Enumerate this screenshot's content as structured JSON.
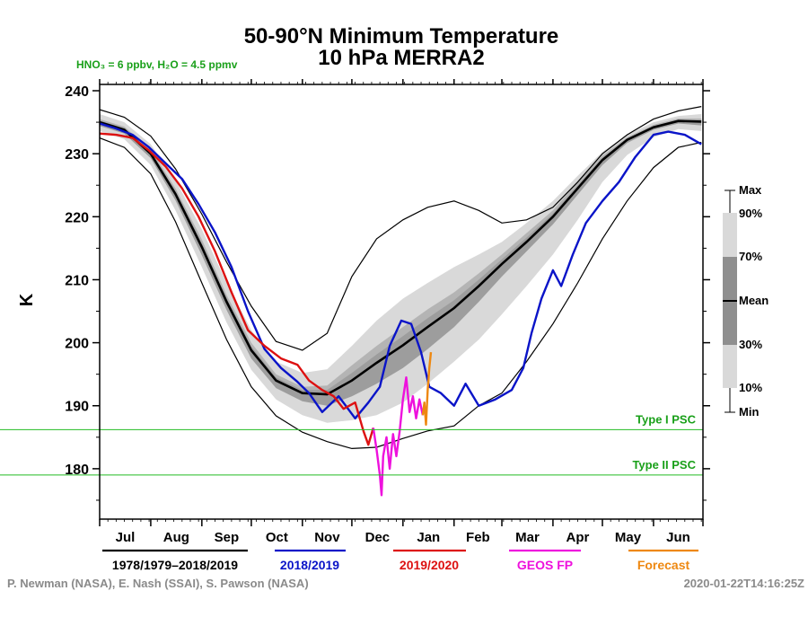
{
  "title_line1": "50-90°N Minimum Temperature",
  "title_line2": "10 hPa   MERRA2",
  "conditions": "HNO₃ = 6 ppbv, H₂O = 4.5 ppmv",
  "ylabel": "K",
  "colors": {
    "climatology": "#000000",
    "y2018": "#0a14c8",
    "y2019": "#dd1111",
    "geos": "#ee11dd",
    "forecast": "#ee8811",
    "psc": "#22bb22",
    "band_outer": "#d9d9d9",
    "band_mid": "#b4b4b4",
    "band_inner": "#8a8a8a"
  },
  "band_key": {
    "labels": [
      "Max",
      "90%",
      "70%",
      "Mean",
      "30%",
      "10%",
      "Min"
    ]
  },
  "footer": {
    "credits": "P. Newman (NASA), E. Nash (SSAI), S. Pawson (NASA)",
    "timestamp": "2020-01-22T14:16:25Z"
  },
  "chart_data": {
    "type": "line",
    "ylim": [
      172,
      241
    ],
    "yticks": [
      180,
      190,
      200,
      210,
      220,
      230,
      240
    ],
    "xlim": [
      0,
      366
    ],
    "months": [
      "Jul",
      "Aug",
      "Sep",
      "Oct",
      "Nov",
      "Dec",
      "Jan",
      "Feb",
      "Mar",
      "Apr",
      "May",
      "Jun"
    ],
    "month_edges": [
      0,
      31,
      62,
      92,
      123,
      153,
      184,
      215,
      244,
      275,
      305,
      336,
      366
    ],
    "thresholds": [
      {
        "label": "Type I PSC",
        "value": 186.2
      },
      {
        "label": "Type II PSC",
        "value": 179.0
      }
    ],
    "x": [
      0,
      15,
      31,
      46,
      62,
      77,
      92,
      107,
      123,
      138,
      153,
      168,
      184,
      199,
      215,
      230,
      244,
      259,
      275,
      290,
      305,
      320,
      336,
      351,
      365
    ],
    "climatology": {
      "name": "1978/1979–2018/2019",
      "max": [
        237.0,
        235.8,
        232.8,
        227.6,
        220.4,
        212.8,
        205.8,
        200.2,
        198.8,
        201.5,
        210.5,
        216.5,
        219.5,
        221.5,
        222.5,
        221.0,
        219.0,
        219.5,
        221.5,
        225.5,
        230.0,
        233.0,
        235.5,
        236.8,
        237.5
      ],
      "p90": [
        236.3,
        235.0,
        231.5,
        225.8,
        218.0,
        209.5,
        202.0,
        197.0,
        195.2,
        195.8,
        199.5,
        203.5,
        207.0,
        209.5,
        212.0,
        214.0,
        216.0,
        219.0,
        222.5,
        226.5,
        230.3,
        233.0,
        235.0,
        236.0,
        236.3
      ],
      "p70": [
        235.5,
        234.3,
        230.7,
        224.5,
        216.4,
        207.6,
        200.0,
        195.0,
        193.0,
        193.2,
        196.4,
        199.5,
        202.5,
        205.3,
        208.0,
        211.0,
        214.0,
        217.4,
        221.0,
        225.5,
        229.7,
        232.6,
        234.6,
        235.6,
        235.6
      ],
      "mean": [
        235.0,
        233.8,
        230.0,
        223.6,
        215.2,
        206.5,
        198.8,
        194.0,
        192.0,
        191.8,
        194.0,
        196.8,
        199.6,
        202.5,
        205.5,
        209.0,
        212.5,
        216.0,
        220.0,
        224.5,
        229.0,
        232.2,
        234.2,
        235.2,
        235.1
      ],
      "p30": [
        234.4,
        233.2,
        229.3,
        222.6,
        213.9,
        205.2,
        197.5,
        192.8,
        190.7,
        190.0,
        191.5,
        193.5,
        196.0,
        199.0,
        202.5,
        206.5,
        210.5,
        214.5,
        218.8,
        223.5,
        228.2,
        231.7,
        233.8,
        234.8,
        234.5
      ],
      "p10": [
        233.6,
        232.3,
        228.2,
        221.0,
        212.0,
        203.2,
        195.7,
        191.0,
        188.5,
        187.3,
        187.7,
        188.5,
        190.5,
        193.5,
        197.0,
        200.5,
        204.5,
        209.0,
        214.0,
        219.5,
        225.5,
        229.8,
        232.6,
        233.9,
        233.6
      ],
      "min": [
        232.5,
        231.0,
        226.8,
        219.2,
        209.5,
        200.5,
        193.0,
        188.4,
        185.8,
        184.3,
        183.2,
        183.4,
        184.8,
        186.0,
        186.8,
        190.0,
        192.0,
        197.0,
        203.0,
        209.5,
        216.5,
        222.5,
        227.8,
        231.0,
        231.8
      ]
    },
    "series": [
      {
        "name": "2018/2019",
        "x": [
          0,
          10,
          20,
          30,
          40,
          50,
          60,
          70,
          80,
          90,
          100,
          110,
          120,
          127,
          135,
          145,
          155,
          163,
          170,
          176,
          183,
          189,
          195,
          200,
          207,
          215,
          222,
          230,
          240,
          250,
          257,
          262,
          268,
          275,
          280,
          287,
          295,
          305,
          315,
          325,
          336,
          345,
          355,
          365
        ],
        "values": [
          234.8,
          234.0,
          233.0,
          231.0,
          228.5,
          226.0,
          222.0,
          217.5,
          212.0,
          205.0,
          199.0,
          196.0,
          193.8,
          192.0,
          189.0,
          191.5,
          188.0,
          190.5,
          193.0,
          199.5,
          203.5,
          203.0,
          198.5,
          193.0,
          192.0,
          190.0,
          193.5,
          190.0,
          191.0,
          192.5,
          196.0,
          201.5,
          207.0,
          211.5,
          209.0,
          214.0,
          219.0,
          222.5,
          225.5,
          229.5,
          233.0,
          233.5,
          233.0,
          231.5
        ]
      },
      {
        "name": "2019/2020",
        "x": [
          0,
          10,
          20,
          30,
          40,
          50,
          60,
          70,
          80,
          90,
          100,
          110,
          120,
          127,
          135,
          142,
          148,
          155,
          160,
          163,
          166
        ],
        "values": [
          233.2,
          233.0,
          232.5,
          230.5,
          228.0,
          224.5,
          220.0,
          214.5,
          208.0,
          202.0,
          199.5,
          197.5,
          196.5,
          194.0,
          192.5,
          191.5,
          189.5,
          190.5,
          186.0,
          183.8,
          186.5
        ]
      },
      {
        "name": "GEOS FP",
        "x": [
          166,
          168,
          170,
          171,
          172,
          174,
          176,
          178,
          180,
          182,
          184,
          186,
          188,
          190,
          192,
          194,
          196
        ],
        "values": [
          186.5,
          183.0,
          179.0,
          175.8,
          182.0,
          185.0,
          180.0,
          185.5,
          182.0,
          186.0,
          191.0,
          194.5,
          189.0,
          191.5,
          188.0,
          191.0,
          188.5
        ]
      },
      {
        "name": "Forecast",
        "x": [
          196,
          197,
          198,
          199,
          200,
          201
        ],
        "values": [
          188.5,
          190.5,
          187.0,
          192.5,
          196.0,
          198.5
        ]
      }
    ]
  }
}
